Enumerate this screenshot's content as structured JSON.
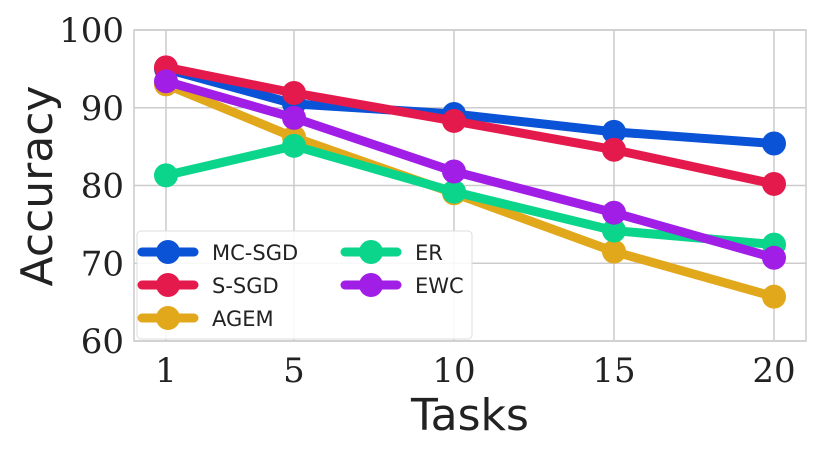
{
  "chart_data": {
    "type": "line",
    "xlabel": "Tasks",
    "ylabel": "Accuracy",
    "x": [
      1,
      5,
      10,
      15,
      20
    ],
    "x_ticks": [
      "1",
      "5",
      "10",
      "15",
      "20"
    ],
    "ylim": [
      60,
      100
    ],
    "y_ticks": [
      60,
      70,
      80,
      90,
      100
    ],
    "grid": true,
    "legend_position": "lower-left",
    "series": [
      {
        "name": "MC-SGD",
        "color": "#0a52d6",
        "values": [
          95.0,
          90.5,
          89.2,
          86.9,
          85.4
        ]
      },
      {
        "name": "S-SGD",
        "color": "#e51a4c",
        "values": [
          95.2,
          91.9,
          88.3,
          84.6,
          80.2
        ]
      },
      {
        "name": "AGEM",
        "color": "#e2a81b",
        "values": [
          93.0,
          86.2,
          79.0,
          71.5,
          65.7
        ]
      },
      {
        "name": "ER",
        "color": "#0bd58a",
        "values": [
          81.3,
          85.1,
          79.2,
          74.2,
          72.4
        ]
      },
      {
        "name": "EWC",
        "color": "#a11ee6",
        "values": [
          93.4,
          88.7,
          81.8,
          76.5,
          70.7
        ]
      }
    ]
  }
}
